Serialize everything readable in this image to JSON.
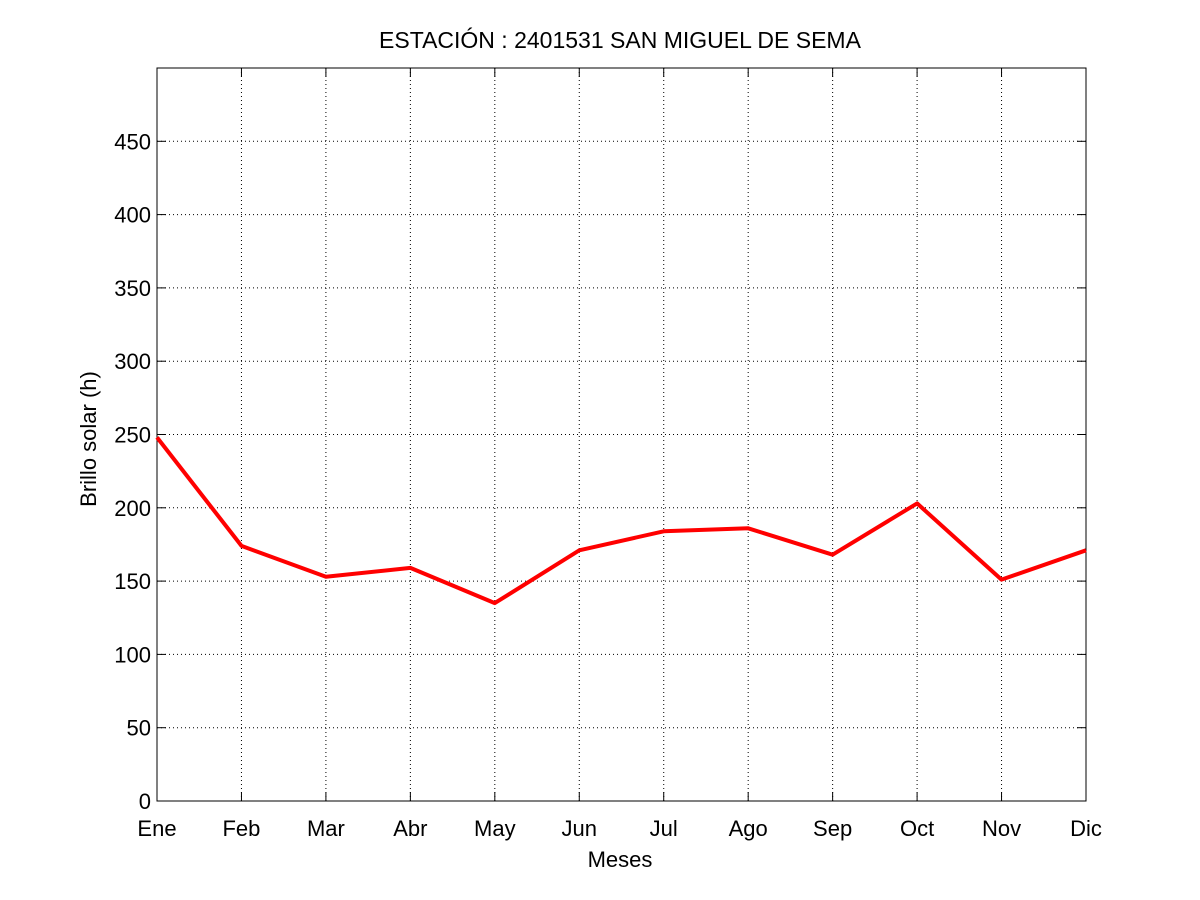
{
  "chart_data": {
    "type": "line",
    "title": "ESTACIÓN :  2401531  SAN MIGUEL DE SEMA",
    "xlabel": "Meses",
    "ylabel": "Brillo solar (h)",
    "categories": [
      "Ene",
      "Feb",
      "Mar",
      "Abr",
      "May",
      "Jun",
      "Jul",
      "Ago",
      "Sep",
      "Oct",
      "Nov",
      "Dic"
    ],
    "series": [
      {
        "values": [
          248,
          174,
          153,
          159,
          135,
          171,
          184,
          186,
          168,
          203,
          151,
          171
        ],
        "color": "#ff0000"
      }
    ],
    "ylim": [
      0,
      500
    ],
    "yticks": [
      0,
      50,
      100,
      150,
      200,
      250,
      300,
      350,
      400,
      450
    ],
    "grid": true
  }
}
